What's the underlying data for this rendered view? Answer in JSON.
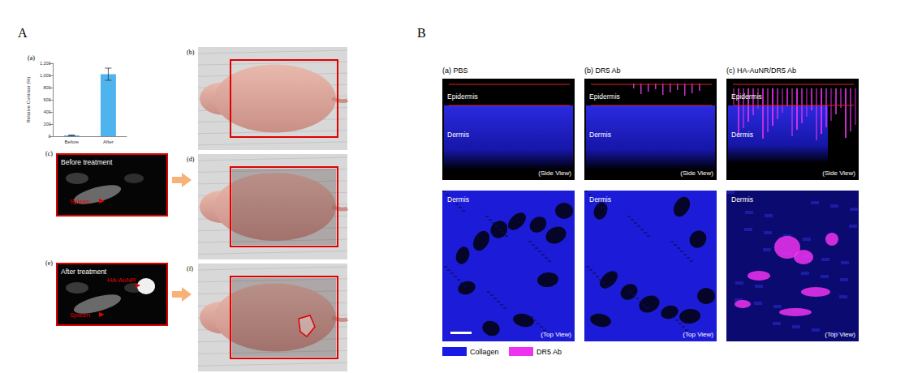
{
  "chart_data": {
    "type": "bar",
    "y_label": "Relative Contrast (%)",
    "categories": [
      "Before",
      "After"
    ],
    "values": [
      15,
      1020
    ],
    "errors": [
      5,
      100
    ],
    "color": "#4fb3ee",
    "ylim": [
      0,
      1200
    ],
    "yticks": [
      0,
      200,
      400,
      600,
      800,
      1000,
      1200
    ],
    "grid": false
  },
  "panels": {
    "A": {
      "label": "A",
      "chart_label": "(a)",
      "photos": [
        {
          "label": "(b)"
        },
        {
          "label": "(d)"
        },
        {
          "label": "(f)"
        }
      ],
      "scans": [
        {
          "label": "(c)",
          "title": "Before treatment",
          "annotations": [
            "Spleen"
          ]
        },
        {
          "label": "(e)",
          "title": "After treatment",
          "annotations": [
            "HA-AuNR",
            "Spleen"
          ]
        }
      ]
    },
    "B": {
      "label": "B",
      "columns": [
        {
          "label": "(a)",
          "name": "PBS",
          "side_layers": [
            "Epidermis",
            "Dermis"
          ],
          "side_view": "(Side View)",
          "top_layer": "Dermis",
          "top_view": "(Top View)"
        },
        {
          "label": "(b)",
          "name": "DR5 Ab",
          "side_layers": [
            "Epidermis",
            "Dermis"
          ],
          "side_view": "(Side View)",
          "top_layer": "Dermis",
          "top_view": "(Top View)"
        },
        {
          "label": "(c)",
          "name": "HA-AuNR/DR5 Ab",
          "side_layers": [
            "Epidermis",
            "Dermis"
          ],
          "side_view": "(Side View)",
          "top_layer": "Dermis",
          "top_view": "(Top View)"
        }
      ],
      "legend": [
        {
          "name": "Collagen",
          "color": "#1a1ae6"
        },
        {
          "name": "DR5 Ab",
          "color": "#ee33ee"
        }
      ]
    }
  }
}
